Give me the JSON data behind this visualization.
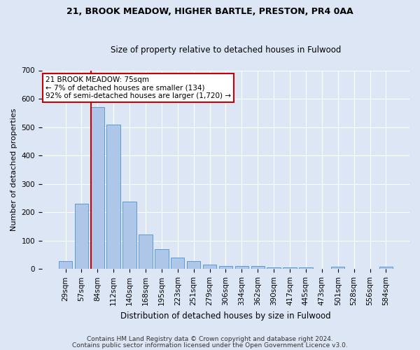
{
  "title1": "21, BROOK MEADOW, HIGHER BARTLE, PRESTON, PR4 0AA",
  "title2": "Size of property relative to detached houses in Fulwood",
  "xlabel": "Distribution of detached houses by size in Fulwood",
  "ylabel": "Number of detached properties",
  "categories": [
    "29sqm",
    "57sqm",
    "84sqm",
    "112sqm",
    "140sqm",
    "168sqm",
    "195sqm",
    "223sqm",
    "251sqm",
    "279sqm",
    "306sqm",
    "334sqm",
    "362sqm",
    "390sqm",
    "417sqm",
    "445sqm",
    "473sqm",
    "501sqm",
    "528sqm",
    "556sqm",
    "584sqm"
  ],
  "values": [
    27,
    230,
    570,
    510,
    238,
    122,
    70,
    40,
    27,
    15,
    10,
    10,
    10,
    5,
    5,
    5,
    0,
    8,
    0,
    0,
    8
  ],
  "bar_color": "#aec6e8",
  "bar_edge_color": "#5b9bd5",
  "vline_color": "#cc0000",
  "annotation_text": "21 BROOK MEADOW: 75sqm\n← 7% of detached houses are smaller (134)\n92% of semi-detached houses are larger (1,720) →",
  "annotation_box_facecolor": "#ffffff",
  "annotation_box_edgecolor": "#cc0000",
  "ylim": [
    0,
    700
  ],
  "yticks": [
    0,
    100,
    200,
    300,
    400,
    500,
    600,
    700
  ],
  "footer1": "Contains HM Land Registry data © Crown copyright and database right 2024.",
  "footer2": "Contains public sector information licensed under the Open Government Licence v3.0.",
  "bg_color": "#dce6f5",
  "plot_bg_color": "#dce6f5",
  "title1_fontsize": 9,
  "title2_fontsize": 8.5,
  "xlabel_fontsize": 8.5,
  "ylabel_fontsize": 8,
  "tick_fontsize": 7.5,
  "footer_fontsize": 6.5
}
